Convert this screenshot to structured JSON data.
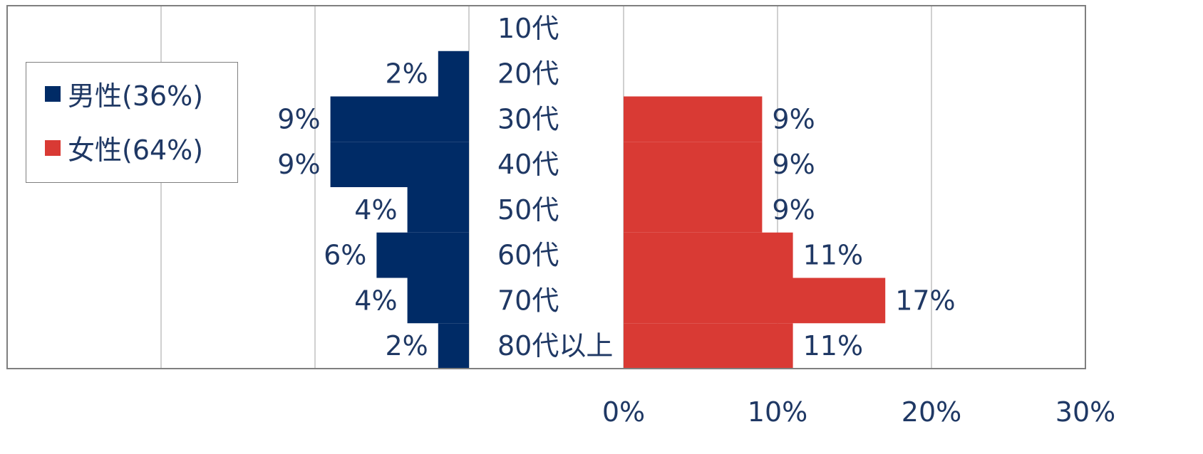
{
  "chart_data": {
    "type": "bar",
    "orientation": "horizontal",
    "layout": "population-pyramid",
    "categories": [
      "10代",
      "20代",
      "30代",
      "40代",
      "50代",
      "60代",
      "70代",
      "80代以上"
    ],
    "series": [
      {
        "name": "男性(36%)",
        "side": "left",
        "color": "#002b66",
        "values": [
          0,
          2,
          9,
          9,
          4,
          6,
          4,
          2
        ],
        "data_labels": [
          "",
          "2%",
          "9%",
          "9%",
          "4%",
          "6%",
          "4%",
          "2%"
        ]
      },
      {
        "name": "女性(64%)",
        "side": "right",
        "color": "#d93a34",
        "values": [
          0,
          0,
          9,
          9,
          9,
          11,
          17,
          11
        ],
        "data_labels": [
          "",
          "",
          "9%",
          "9%",
          "9%",
          "11%",
          "17%",
          "11%"
        ]
      }
    ],
    "xlim": [
      0,
      30
    ],
    "x_ticks": [
      "0%",
      "10%",
      "20%",
      "30%"
    ],
    "grid": true,
    "legend_position": "top-left",
    "title": "",
    "xlabel": "",
    "ylabel": ""
  },
  "colors": {
    "label_text": "#1f3864",
    "grid": "#c0c0c0",
    "border": "#7f7f7f"
  }
}
